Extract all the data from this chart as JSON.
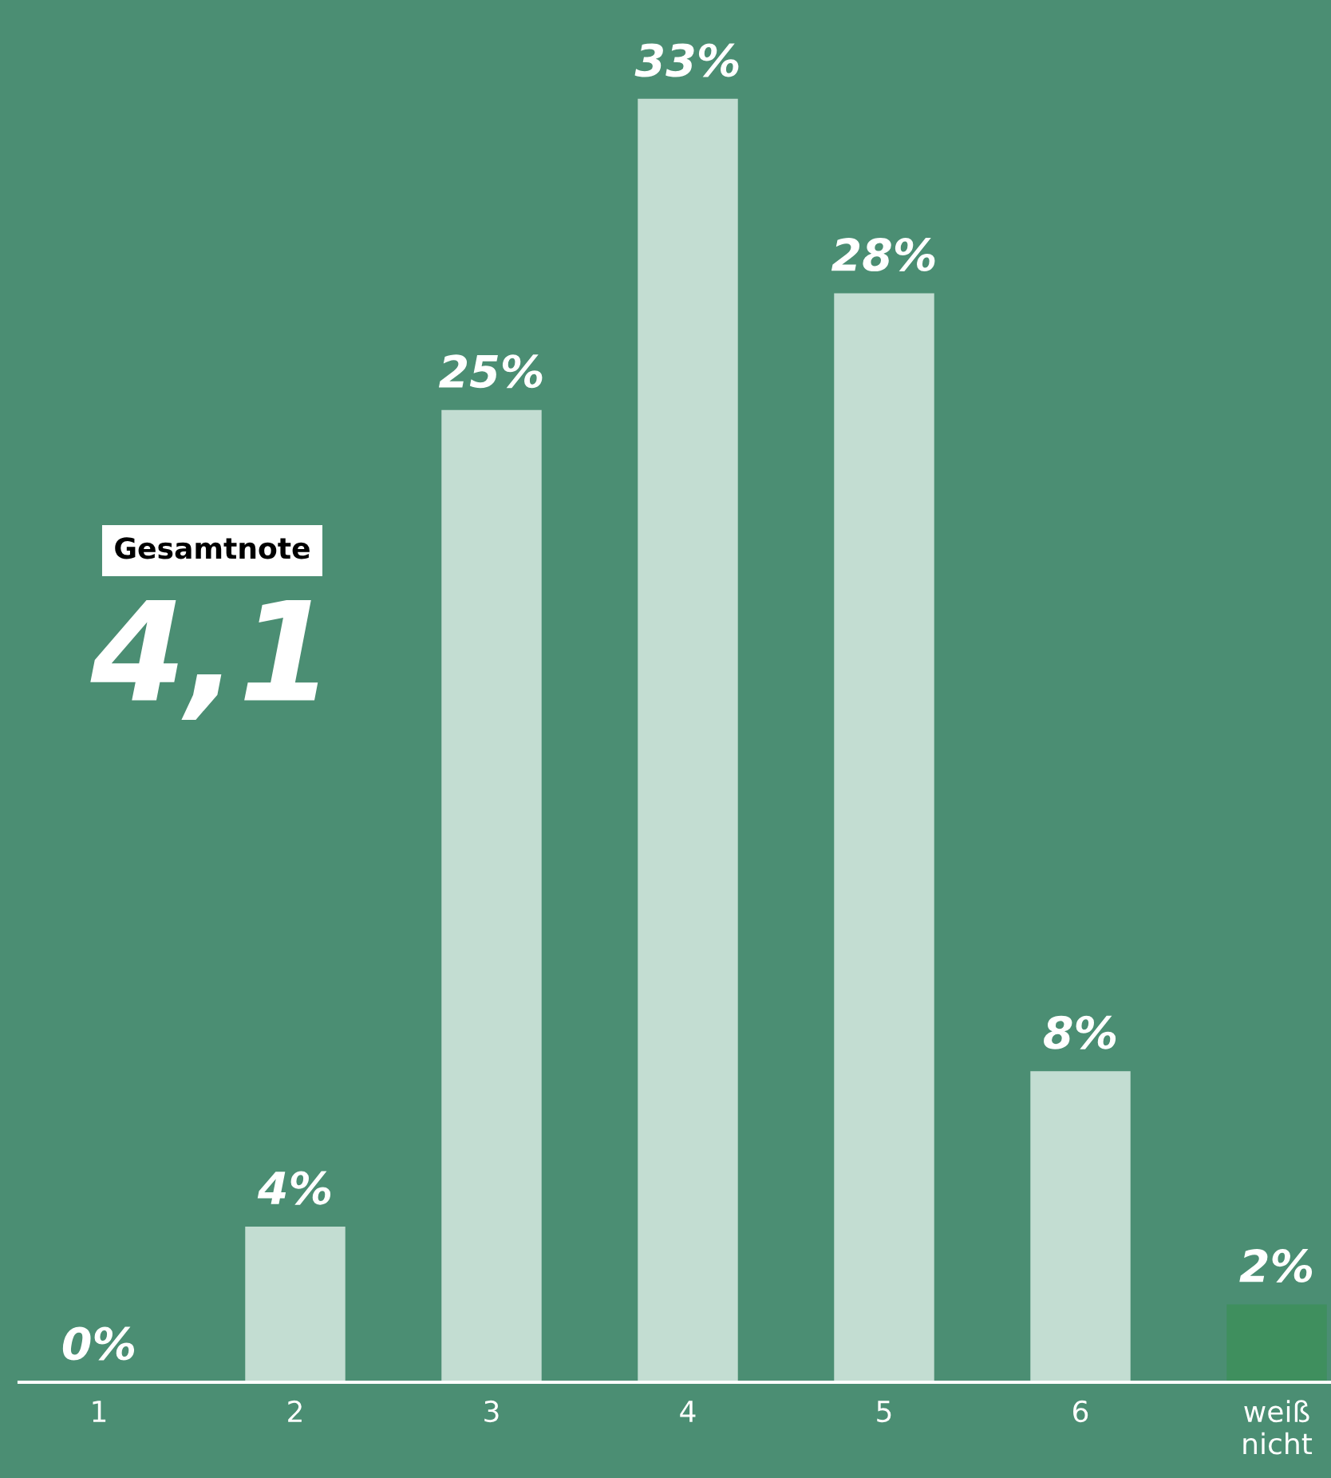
{
  "chart_data": {
    "type": "bar",
    "categories": [
      "1",
      "2",
      "3",
      "4",
      "5",
      "6",
      "weiß\nnicht"
    ],
    "values": [
      0,
      4,
      25,
      33,
      28,
      8,
      2
    ],
    "colors": [
      "#c3ddd2",
      "#c3ddd2",
      "#c3ddd2",
      "#c3ddd2",
      "#c3ddd2",
      "#c3ddd2",
      "#3f8f5e"
    ],
    "value_labels": [
      "0%",
      "4%",
      "25%",
      "33%",
      "28%",
      "8%",
      "2%"
    ],
    "annotations": [
      "Gesamtnote",
      "4,1"
    ],
    "grid": false,
    "legend": false
  }
}
